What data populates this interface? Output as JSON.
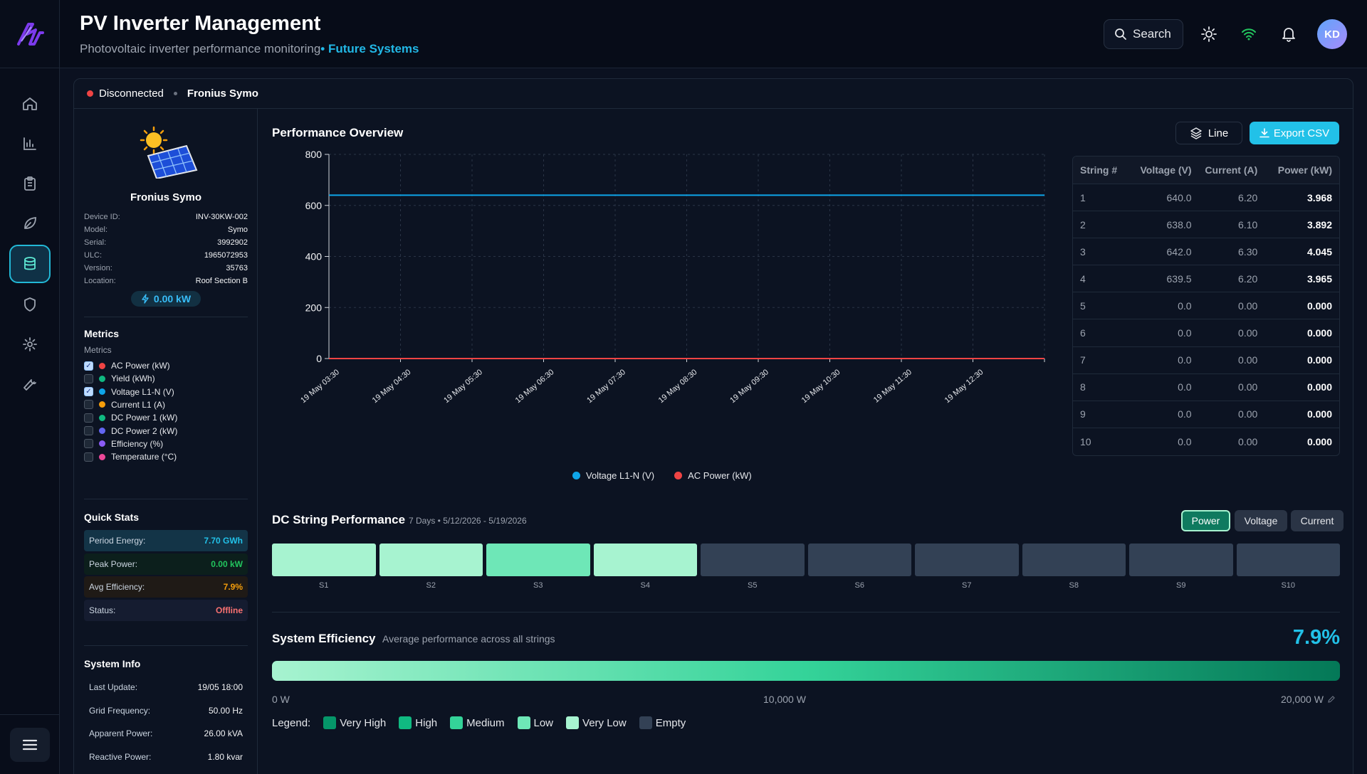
{
  "header": {
    "title": "PV Inverter Management",
    "subtitle": "Photovoltaic inverter performance monitoring",
    "subtitle_accent": "• Future Systems",
    "search_label": "Search",
    "avatar_initials": "KD"
  },
  "status_bar": {
    "connection": "Disconnected",
    "device": "Fronius Symo"
  },
  "device": {
    "name": "Fronius Symo",
    "fields": [
      {
        "label": "Device ID:",
        "value": "INV-30KW-002"
      },
      {
        "label": "Model:",
        "value": "Symo"
      },
      {
        "label": "Serial:",
        "value": "3992902"
      },
      {
        "label": "ULC:",
        "value": "1965072953"
      },
      {
        "label": "Version:",
        "value": "35763"
      },
      {
        "label": "Location:",
        "value": "Roof Section B"
      }
    ],
    "power_badge": "0.00 kW"
  },
  "metrics": {
    "title": "Metrics",
    "subtitle": "Metrics",
    "items": [
      {
        "label": "AC Power (kW)",
        "checked": true,
        "color": "#ef4444"
      },
      {
        "label": "Yield (kWh)",
        "checked": false,
        "color": "#10b981"
      },
      {
        "label": "Voltage L1-N (V)",
        "checked": true,
        "color": "#0ea5e9"
      },
      {
        "label": "Current L1 (A)",
        "checked": false,
        "color": "#f59e0b"
      },
      {
        "label": "DC Power 1 (kW)",
        "checked": false,
        "color": "#10b981"
      },
      {
        "label": "DC Power 2 (kW)",
        "checked": false,
        "color": "#6366f1"
      },
      {
        "label": "Efficiency (%)",
        "checked": false,
        "color": "#8b5cf6"
      },
      {
        "label": "Temperature (°C)",
        "checked": false,
        "color": "#ec4899"
      }
    ]
  },
  "quick_stats": {
    "title": "Quick Stats",
    "items": [
      {
        "label": "Period Energy:",
        "value": "7.70 GWh",
        "value_color": "#22c1e8",
        "bg": "#133447"
      },
      {
        "label": "Peak Power:",
        "value": "0.00 kW",
        "value_color": "#22c55e",
        "bg": "#0c1f1c"
      },
      {
        "label": "Avg Efficiency:",
        "value": "7.9%",
        "value_color": "#f59e0b",
        "bg": "#1f1a16"
      },
      {
        "label": "Status:",
        "value": "Offline",
        "value_color": "#f87171",
        "bg": "#151c30"
      }
    ]
  },
  "system_info": {
    "title": "System Info",
    "items": [
      {
        "label": "Last Update:",
        "value": "19/05 18:00"
      },
      {
        "label": "Grid Frequency:",
        "value": "50.00 Hz"
      },
      {
        "label": "Apparent Power:",
        "value": "26.00 kVA"
      },
      {
        "label": "Reactive Power:",
        "value": "1.80 kvar"
      }
    ]
  },
  "chart": {
    "title": "Performance Overview",
    "line_button": "Line",
    "export_button": "Export CSV"
  },
  "chart_data": {
    "type": "line",
    "x": [
      "19 May 03:30",
      "19 May 04:30",
      "19 May 05:30",
      "19 May 06:30",
      "19 May 07:30",
      "19 May 08:30",
      "19 May 09:30",
      "19 May 10:30",
      "19 May 11:30",
      "19 May 12:30"
    ],
    "series": [
      {
        "name": "Voltage L1-N (V)",
        "color": "#0ea5e9",
        "values": [
          640,
          640,
          640,
          640,
          640,
          640,
          640,
          640,
          640,
          640
        ]
      },
      {
        "name": "AC Power (kW)",
        "color": "#ef4444",
        "values": [
          0,
          0,
          0,
          0,
          0,
          0,
          0,
          0,
          0,
          0
        ]
      }
    ],
    "yticks": [
      0,
      200,
      400,
      600,
      800
    ],
    "ylim": [
      0,
      800
    ],
    "grid": true,
    "legend": "bottom"
  },
  "string_table": {
    "headers": [
      "String #",
      "Voltage (V)",
      "Current (A)",
      "Power (kW)"
    ],
    "rows": [
      [
        "1",
        "640.0",
        "6.20",
        "3.968"
      ],
      [
        "2",
        "638.0",
        "6.10",
        "3.892"
      ],
      [
        "3",
        "642.0",
        "6.30",
        "4.045"
      ],
      [
        "4",
        "639.5",
        "6.20",
        "3.965"
      ],
      [
        "5",
        "0.0",
        "0.00",
        "0.000"
      ],
      [
        "6",
        "0.0",
        "0.00",
        "0.000"
      ],
      [
        "7",
        "0.0",
        "0.00",
        "0.000"
      ],
      [
        "8",
        "0.0",
        "0.00",
        "0.000"
      ],
      [
        "9",
        "0.0",
        "0.00",
        "0.000"
      ],
      [
        "10",
        "0.0",
        "0.00",
        "0.000"
      ]
    ]
  },
  "dc_strings": {
    "title": "DC String Performance",
    "subtitle": "7 Days • 5/12/2026 - 5/19/2026",
    "toggles": [
      "Power",
      "Voltage",
      "Current"
    ],
    "strings": [
      {
        "label": "S1",
        "color": "#a7f3d0"
      },
      {
        "label": "S2",
        "color": "#a7f3d0"
      },
      {
        "label": "S3",
        "color": "#6ee7b7"
      },
      {
        "label": "S4",
        "color": "#a7f3d0"
      },
      {
        "label": "S5",
        "color": "#334155"
      },
      {
        "label": "S6",
        "color": "#334155"
      },
      {
        "label": "S7",
        "color": "#334155"
      },
      {
        "label": "S8",
        "color": "#334155"
      },
      {
        "label": "S9",
        "color": "#334155"
      },
      {
        "label": "S10",
        "color": "#334155"
      }
    ]
  },
  "efficiency": {
    "title": "System Efficiency",
    "subtitle": "Average performance across all strings",
    "value": "7.9%",
    "scale_min": "0 W",
    "scale_mid": "10,000 W",
    "scale_max": "20,000 W",
    "legend_label": "Legend:",
    "legend": [
      {
        "label": "Very High",
        "color": "#059669"
      },
      {
        "label": "High",
        "color": "#10b981"
      },
      {
        "label": "Medium",
        "color": "#34d399"
      },
      {
        "label": "Low",
        "color": "#6ee7b7"
      },
      {
        "label": "Very Low",
        "color": "#a7f3d0"
      },
      {
        "label": "Empty",
        "color": "#334155"
      }
    ]
  }
}
